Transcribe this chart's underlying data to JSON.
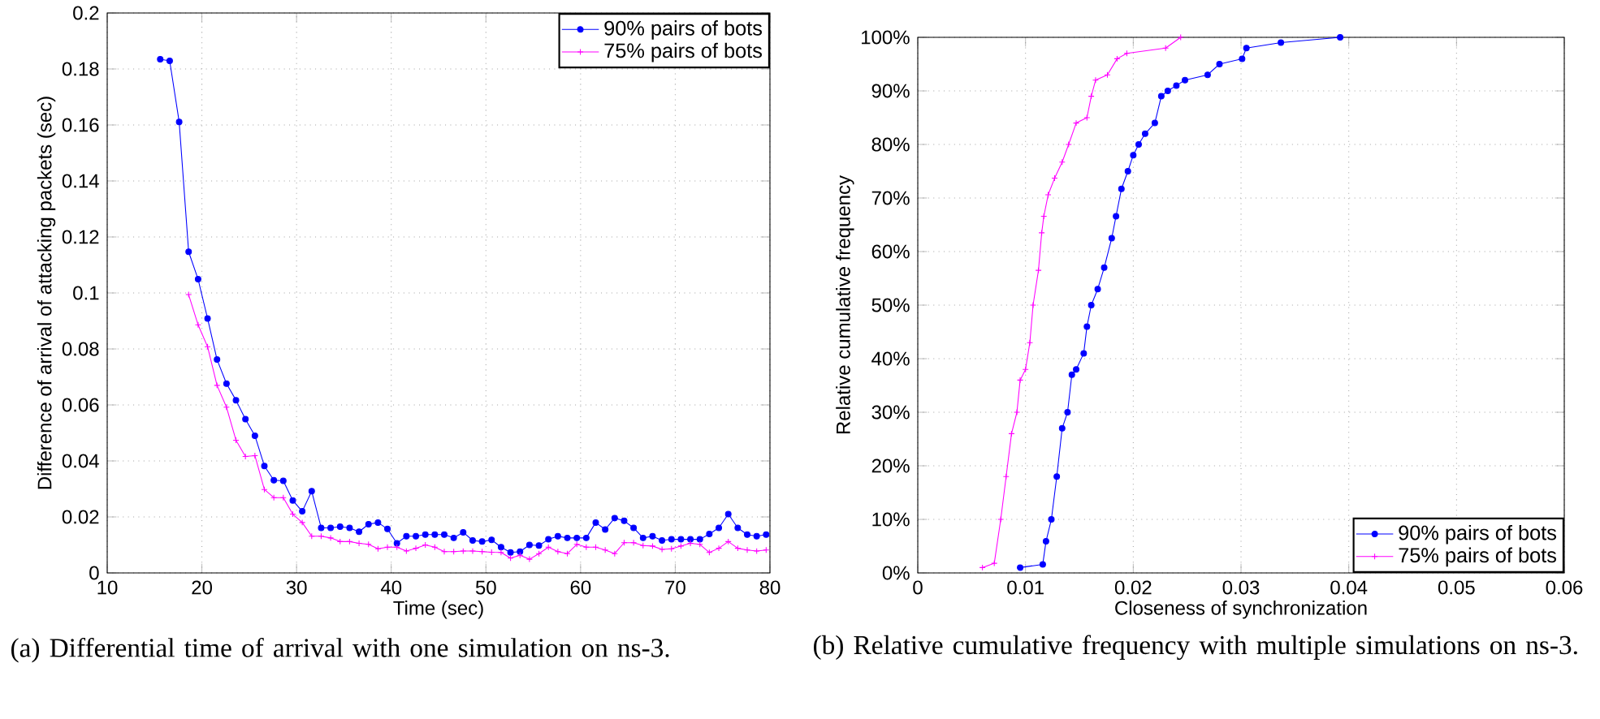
{
  "chart_data": [
    {
      "type": "line",
      "xlabel": "Time (sec)",
      "ylabel": "Difference of arrival of attacking packets (sec)",
      "xlim": [
        10,
        80
      ],
      "ylim": [
        0,
        0.2
      ],
      "xticks": [
        10,
        20,
        30,
        40,
        50,
        60,
        70,
        80
      ],
      "yticks": [
        0,
        0.02,
        0.04,
        0.06,
        0.08,
        0.1,
        0.12,
        0.14,
        0.16,
        0.18,
        0.2
      ],
      "grid": true,
      "legend": "top right",
      "series": [
        {
          "name": "90% pairs of bots",
          "color": "#0000ff",
          "marker": "circle",
          "x": [
            15.6,
            16.6,
            17.6,
            18.6,
            19.6,
            20.6,
            21.6,
            22.6,
            23.6,
            24.6,
            25.6,
            26.6,
            27.6,
            28.6,
            29.6,
            30.6,
            31.6,
            32.6,
            33.6,
            34.6,
            35.6,
            36.6,
            37.6,
            38.6,
            39.6,
            40.6,
            41.6,
            42.6,
            43.6,
            44.6,
            45.6,
            46.6,
            47.6,
            48.6,
            49.6,
            50.6,
            51.6,
            52.6,
            53.6,
            54.6,
            55.6,
            56.6,
            57.6,
            58.6,
            59.6,
            60.6,
            61.6,
            62.6,
            63.6,
            64.6,
            65.6,
            66.6,
            67.6,
            68.6,
            69.6,
            70.6,
            71.6,
            72.6,
            73.6,
            74.6,
            75.6,
            76.6,
            77.6,
            78.6,
            79.6
          ],
          "values": [
            0.1835,
            0.1829,
            0.1611,
            0.1147,
            0.1049,
            0.0909,
            0.0762,
            0.0676,
            0.0617,
            0.0549,
            0.049,
            0.0382,
            0.0331,
            0.0329,
            0.0259,
            0.022,
            0.0292,
            0.0161,
            0.0161,
            0.0165,
            0.0161,
            0.0147,
            0.0174,
            0.018,
            0.0157,
            0.0106,
            0.0131,
            0.0131,
            0.0137,
            0.0137,
            0.0137,
            0.0125,
            0.0145,
            0.0116,
            0.0112,
            0.0118,
            0.0092,
            0.0073,
            0.0076,
            0.01,
            0.0098,
            0.012,
            0.0131,
            0.0125,
            0.0125,
            0.0125,
            0.018,
            0.0155,
            0.0196,
            0.0186,
            0.0161,
            0.0125,
            0.0131,
            0.0116,
            0.012,
            0.012,
            0.012,
            0.012,
            0.0139,
            0.0161,
            0.021,
            0.0161,
            0.0137,
            0.0131,
            0.0137
          ]
        },
        {
          "name": "75% pairs of bots",
          "color": "#ff00ff",
          "marker": "cross",
          "x": [
            18.6,
            19.6,
            20.6,
            21.6,
            22.6,
            23.6,
            24.6,
            25.6,
            26.6,
            27.6,
            28.6,
            29.6,
            30.6,
            31.6,
            32.6,
            33.6,
            34.6,
            35.6,
            36.6,
            37.6,
            38.6,
            39.6,
            40.6,
            41.6,
            42.6,
            43.6,
            44.6,
            45.6,
            46.6,
            47.6,
            48.6,
            49.6,
            50.6,
            51.6,
            52.6,
            53.6,
            54.6,
            55.6,
            56.6,
            57.6,
            58.6,
            59.6,
            60.6,
            61.6,
            62.6,
            63.6,
            64.6,
            65.6,
            66.6,
            67.6,
            68.6,
            69.6,
            70.6,
            71.6,
            72.6,
            73.6,
            74.6,
            75.6,
            76.6,
            77.6,
            78.6,
            79.6
          ],
          "values": [
            0.0994,
            0.0886,
            0.0808,
            0.067,
            0.0592,
            0.0474,
            0.0416,
            0.0419,
            0.0298,
            0.0269,
            0.0269,
            0.021,
            0.018,
            0.0131,
            0.0131,
            0.0125,
            0.0112,
            0.0112,
            0.0106,
            0.0102,
            0.0086,
            0.0092,
            0.0092,
            0.0078,
            0.0088,
            0.01,
            0.0092,
            0.0076,
            0.0076,
            0.0078,
            0.0078,
            0.0076,
            0.0074,
            0.0073,
            0.0053,
            0.0063,
            0.0049,
            0.0069,
            0.0092,
            0.0076,
            0.0069,
            0.0102,
            0.0092,
            0.0092,
            0.0082,
            0.0069,
            0.0108,
            0.0108,
            0.0098,
            0.0096,
            0.0084,
            0.0086,
            0.0096,
            0.0106,
            0.0102,
            0.0073,
            0.0088,
            0.0112,
            0.0088,
            0.0082,
            0.0078,
            0.0082
          ]
        }
      ],
      "annotations": [
        "(a) Differential time of arrival with one simulation on ns-3."
      ]
    },
    {
      "type": "line",
      "xlabel": "Closeness of synchronization",
      "ylabel": "Relative cumulative frequency",
      "xlim": [
        0,
        0.06
      ],
      "ylim": [
        0,
        100
      ],
      "xticks": [
        0,
        0.01,
        0.02,
        0.03,
        0.04,
        0.05,
        0.06
      ],
      "yticks": [
        {
          "value": 0,
          "label": "0%"
        },
        {
          "value": 10,
          "label": "10%"
        },
        {
          "value": 20,
          "label": "20%"
        },
        {
          "value": 30,
          "label": "30%"
        },
        {
          "value": 40,
          "label": "40%"
        },
        {
          "value": 50,
          "label": "50%"
        },
        {
          "value": 60,
          "label": "60%"
        },
        {
          "value": 70,
          "label": "70%"
        },
        {
          "value": 80,
          "label": "80%"
        },
        {
          "value": 90,
          "label": "90%"
        },
        {
          "value": 100,
          "label": "100%"
        }
      ],
      "grid": true,
      "legend": "bottom right",
      "series": [
        {
          "name": "90% pairs of bots",
          "color": "#0000ff",
          "marker": "circle",
          "x": [
            0.0095,
            0.0116,
            0.0119,
            0.0124,
            0.0129,
            0.0134,
            0.0139,
            0.0143,
            0.0147,
            0.0154,
            0.0157,
            0.0161,
            0.0167,
            0.0173,
            0.018,
            0.0184,
            0.0189,
            0.0195,
            0.02,
            0.0205,
            0.0211,
            0.022,
            0.0226,
            0.0232,
            0.024,
            0.0248,
            0.0269,
            0.028,
            0.0301,
            0.0305,
            0.0337,
            0.0392
          ],
          "values": [
            1,
            1.6,
            5.9,
            10,
            18,
            27,
            30,
            37,
            38,
            41,
            46,
            50,
            53,
            57,
            62.5,
            66.6,
            71.7,
            75,
            78,
            80,
            82,
            84,
            89,
            90,
            91,
            92,
            93,
            95,
            96,
            98,
            99,
            100
          ]
        },
        {
          "name": "75% pairs of bots",
          "color": "#ff00ff",
          "marker": "cross",
          "x": [
            0.006,
            0.0071,
            0.0077,
            0.0082,
            0.0087,
            0.0092,
            0.0095,
            0.01,
            0.0104,
            0.0107,
            0.0112,
            0.0115,
            0.0117,
            0.0121,
            0.0127,
            0.0134,
            0.014,
            0.0147,
            0.0157,
            0.0161,
            0.0165,
            0.0176,
            0.0185,
            0.0194,
            0.023,
            0.0244
          ],
          "values": [
            1,
            1.8,
            10,
            18,
            26,
            30,
            36,
            38,
            43,
            50,
            56.5,
            63.5,
            66.6,
            70.6,
            73.7,
            76.7,
            80,
            84,
            85,
            89,
            92,
            93,
            96,
            97,
            98,
            100
          ]
        }
      ],
      "annotations": [
        "(b) Relative cumulative frequency with multiple simulations on ns-3."
      ]
    }
  ]
}
